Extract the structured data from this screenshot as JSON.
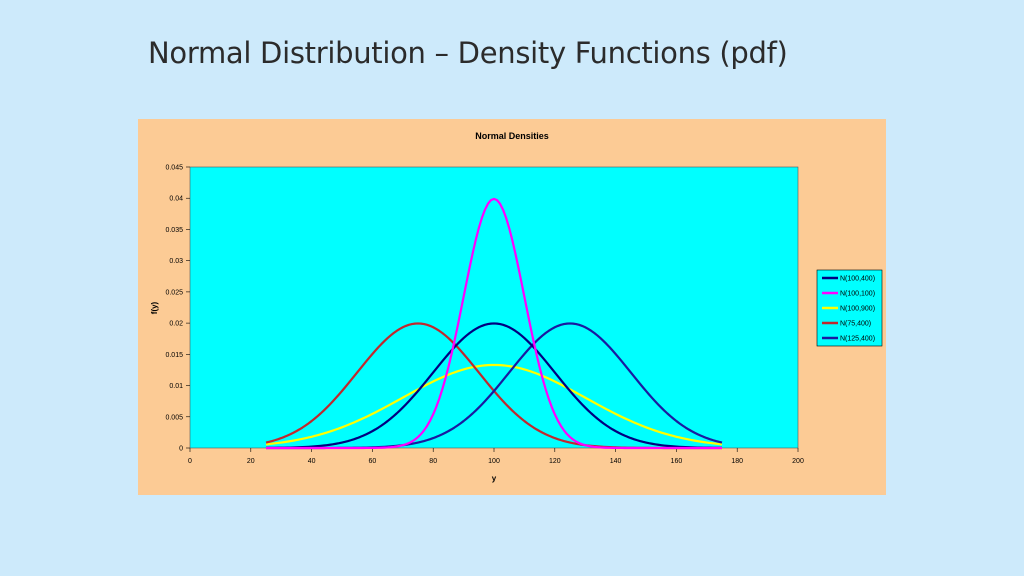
{
  "slide": {
    "title": "Normal Distribution – Density Functions (pdf)"
  },
  "chart_data": {
    "type": "line",
    "title": "Normal Densities",
    "xlabel": "y",
    "ylabel": "f(y)",
    "xlim": [
      0,
      200
    ],
    "ylim": [
      0,
      0.045
    ],
    "xticks": [
      "0",
      "20",
      "40",
      "60",
      "80",
      "100",
      "120",
      "140",
      "160",
      "180",
      "200"
    ],
    "yticks": [
      "0",
      "0.005",
      "0.01",
      "0.015",
      "0.02",
      "0.025",
      "0.03",
      "0.035",
      "0.04",
      "0.045"
    ],
    "x_range": [
      25,
      175
    ],
    "grid": false,
    "legend": "right",
    "plot_background": "#00ffff",
    "chart_background": "#fccb95",
    "series": [
      {
        "name": "N(100,400)",
        "mean": 100,
        "variance": 400,
        "color": "#000080"
      },
      {
        "name": "N(100,100)",
        "mean": 100,
        "variance": 100,
        "color": "#ff00ff"
      },
      {
        "name": "N(100,900)",
        "mean": 100,
        "variance": 900,
        "color": "#ffff00"
      },
      {
        "name": "N(75,400)",
        "mean": 75,
        "variance": 400,
        "color": "#c0282d"
      },
      {
        "name": "N(125,400)",
        "mean": 125,
        "variance": 400,
        "color": "#1a1aa0"
      }
    ]
  }
}
